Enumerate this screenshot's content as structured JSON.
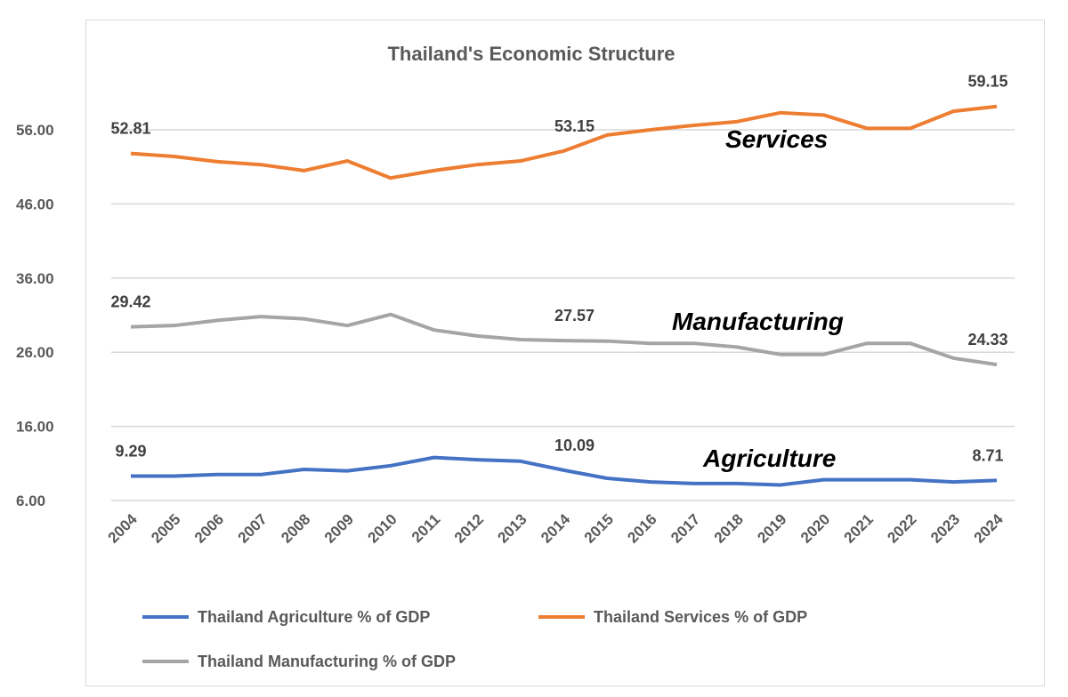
{
  "chart_data": {
    "type": "line",
    "title": "Thailand's Economic Structure",
    "x": [
      "2004",
      "2005",
      "2006",
      "2007",
      "2008",
      "2009",
      "2010",
      "2011",
      "2012",
      "2013",
      "2014",
      "2015",
      "2016",
      "2017",
      "2018",
      "2019",
      "2020",
      "2021",
      "2022",
      "2023",
      "2024"
    ],
    "yticks": [
      "6.00",
      "16.00",
      "26.00",
      "36.00",
      "46.00",
      "56.00"
    ],
    "ylim": [
      6,
      62
    ],
    "grid": true,
    "legend_placement": "bottom",
    "series": [
      {
        "name": "Thailand Agriculture % of GDP",
        "color": "#4472c4",
        "annotation": "Agriculture",
        "values": [
          9.29,
          9.3,
          9.5,
          9.5,
          10.2,
          10.0,
          10.7,
          11.8,
          11.5,
          11.3,
          10.09,
          9.0,
          8.5,
          8.3,
          8.3,
          8.1,
          8.8,
          8.8,
          8.8,
          8.5,
          8.71
        ],
        "labels": {
          "0": "9.29",
          "10": "10.09",
          "20": "8.71"
        }
      },
      {
        "name": "Thailand Services % of GDP",
        "color": "#ed7d31",
        "annotation": "Services",
        "values": [
          52.81,
          52.4,
          51.7,
          51.3,
          50.5,
          51.8,
          49.5,
          50.5,
          51.3,
          51.8,
          53.15,
          55.3,
          56.0,
          56.6,
          57.1,
          58.3,
          58.0,
          56.2,
          56.2,
          58.5,
          59.15
        ],
        "labels": {
          "0": "52.81",
          "10": "53.15",
          "20": "59.15"
        }
      },
      {
        "name": "Thailand Manufacturing % of GDP",
        "color": "#a5a5a5",
        "annotation": "Manufacturing",
        "values": [
          29.42,
          29.6,
          30.3,
          30.8,
          30.5,
          29.6,
          31.1,
          29.0,
          28.2,
          27.7,
          27.57,
          27.5,
          27.2,
          27.2,
          26.7,
          25.7,
          25.7,
          27.2,
          27.2,
          25.2,
          24.33
        ],
        "labels": {
          "0": "29.42",
          "10": "27.57",
          "20": "24.33"
        }
      }
    ]
  }
}
